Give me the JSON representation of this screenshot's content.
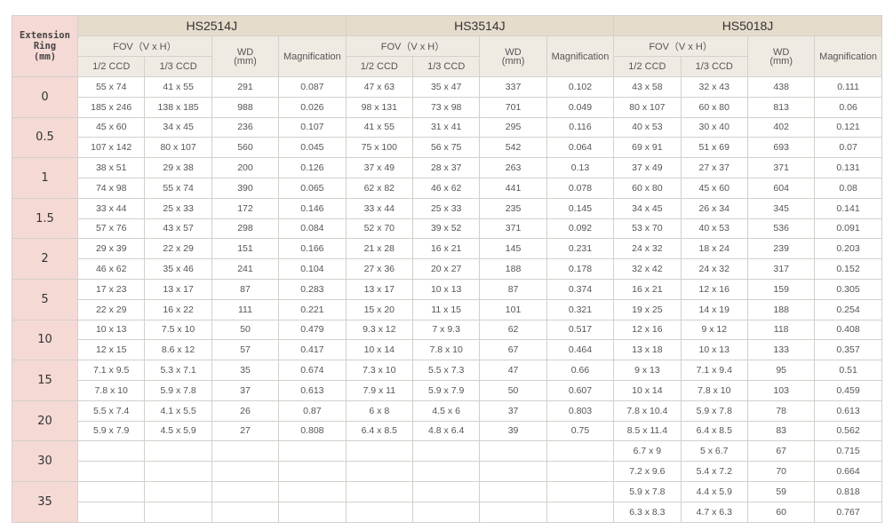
{
  "header": {
    "ext_label": [
      "Extension",
      "Ring",
      "(mm)"
    ],
    "models": [
      "HS2514J",
      "HS3514J",
      "HS5018J"
    ],
    "fov_label": "FOV（V x H）",
    "wd_label": [
      "WD",
      "(mm)"
    ],
    "mag_label": "Magnification",
    "ccd_labels": [
      "1/2 CCD",
      "1/3 CCD"
    ]
  },
  "colors": {
    "model_header": "#e6dccc",
    "sub_header": "#efebe3",
    "ext_column": "#f5d9d4"
  },
  "rows": [
    {
      "ext": "0",
      "data": [
        [
          "55 x 74",
          "41 x 55",
          "291",
          "0.087",
          "47 x 63",
          "35 x 47",
          "337",
          "0.102",
          "43 x 58",
          "32 x 43",
          "438",
          "0.111"
        ],
        [
          "185 x 246",
          "138 x 185",
          "988",
          "0.026",
          "98 x 131",
          "73 x 98",
          "701",
          "0.049",
          "80 x 107",
          "60 x 80",
          "813",
          "0.06"
        ]
      ]
    },
    {
      "ext": "0.5",
      "data": [
        [
          "45 x 60",
          "34 x 45",
          "236",
          "0.107",
          "41 x 55",
          "31 x 41",
          "295",
          "0.116",
          "40 x 53",
          "30 x 40",
          "402",
          "0.121"
        ],
        [
          "107 x 142",
          "80 x 107",
          "560",
          "0.045",
          "75 x 100",
          "56 x 75",
          "542",
          "0.064",
          "69 x 91",
          "51 x 69",
          "693",
          "0.07"
        ]
      ]
    },
    {
      "ext": "1",
      "data": [
        [
          "38 x 51",
          "29 x 38",
          "200",
          "0.126",
          "37 x 49",
          "28 x 37",
          "263",
          "0.13",
          "37 x 49",
          "27 x 37",
          "371",
          "0.131"
        ],
        [
          "74 x 98",
          "55 x 74",
          "390",
          "0.065",
          "62 x 82",
          "46 x 62",
          "441",
          "0.078",
          "60 x 80",
          "45 x 60",
          "604",
          "0.08"
        ]
      ]
    },
    {
      "ext": "1.5",
      "data": [
        [
          "33 x 44",
          "25 x 33",
          "172",
          "0.146",
          "33 x 44",
          "25 x 33",
          "235",
          "0.145",
          "34 x 45",
          "26 x 34",
          "345",
          "0.141"
        ],
        [
          "57 x 76",
          "43 x 57",
          "298",
          "0.084",
          "52 x 70",
          "39 x 52",
          "371",
          "0.092",
          "53 x 70",
          "40 x 53",
          "536",
          "0.091"
        ]
      ]
    },
    {
      "ext": "2",
      "data": [
        [
          "29 x 39",
          "22 x 29",
          "151",
          "0.166",
          "21 x 28",
          "16 x 21",
          "145",
          "0.231",
          "24 x 32",
          "18 x 24",
          "239",
          "0.203"
        ],
        [
          "46 x 62",
          "35 x 46",
          "241",
          "0.104",
          "27 x 36",
          "20 x 27",
          "188",
          "0.178",
          "32 x 42",
          "24 x 32",
          "317",
          "0.152"
        ]
      ]
    },
    {
      "ext": "5",
      "data": [
        [
          "17 x 23",
          "13 x 17",
          "87",
          "0.283",
          "13 x 17",
          "10 x 13",
          "87",
          "0.374",
          "16 x 21",
          "12 x 16",
          "159",
          "0.305"
        ],
        [
          "22 x 29",
          "16 x 22",
          "111",
          "0.221",
          "15 x 20",
          "11 x 15",
          "101",
          "0.321",
          "19 x 25",
          "14 x 19",
          "188",
          "0.254"
        ]
      ]
    },
    {
      "ext": "10",
      "data": [
        [
          "10 x 13",
          "7.5 x 10",
          "50",
          "0.479",
          "9.3 x 12",
          "7 x 9.3",
          "62",
          "0.517",
          "12 x 16",
          "9 x 12",
          "118",
          "0.408"
        ],
        [
          "12 x 15",
          "8.6 x 12",
          "57",
          "0.417",
          "10 x 14",
          "7.8 x 10",
          "67",
          "0.464",
          "13 x 18",
          "10 x 13",
          "133",
          "0.357"
        ]
      ]
    },
    {
      "ext": "15",
      "data": [
        [
          "7.1 x 9.5",
          "5.3 x 7.1",
          "35",
          "0.674",
          "7.3 x 10",
          "5.5 x 7.3",
          "47",
          "0.66",
          "9 x 13",
          "7.1 x 9.4",
          "95",
          "0.51"
        ],
        [
          "7.8 x 10",
          "5.9 x 7.8",
          "37",
          "0.613",
          "7.9 x 11",
          "5.9 x 7.9",
          "50",
          "0.607",
          "10 x 14",
          "7.8 x 10",
          "103",
          "0.459"
        ]
      ]
    },
    {
      "ext": "20",
      "data": [
        [
          "5.5 x 7.4",
          "4.1 x 5.5",
          "26",
          "0.87",
          "6 x 8",
          "4.5 x 6",
          "37",
          "0.803",
          "7.8 x 10.4",
          "5.9 x 7.8",
          "78",
          "0.613"
        ],
        [
          "5.9 x 7.9",
          "4.5 x 5.9",
          "27",
          "0.808",
          "6.4 x 8.5",
          "4.8 x 6.4",
          "39",
          "0.75",
          "8.5 x 11.4",
          "6.4 x 8.5",
          "83",
          "0.562"
        ]
      ]
    },
    {
      "ext": "30",
      "data": [
        [
          "",
          "",
          "",
          "",
          "",
          "",
          "",
          "",
          "6.7 x 9",
          "5 x 6.7",
          "67",
          "0.715"
        ],
        [
          "",
          "",
          "",
          "",
          "",
          "",
          "",
          "",
          "7.2 x 9.6",
          "5.4 x 7.2",
          "70",
          "0.664"
        ]
      ]
    },
    {
      "ext": "35",
      "data": [
        [
          "",
          "",
          "",
          "",
          "",
          "",
          "",
          "",
          "5.9 x 7.8",
          "4.4 x 5.9",
          "59",
          "0.818"
        ],
        [
          "",
          "",
          "",
          "",
          "",
          "",
          "",
          "",
          "6.3 x 8.3",
          "4.7 x 6.3",
          "60",
          "0.767"
        ]
      ]
    }
  ]
}
